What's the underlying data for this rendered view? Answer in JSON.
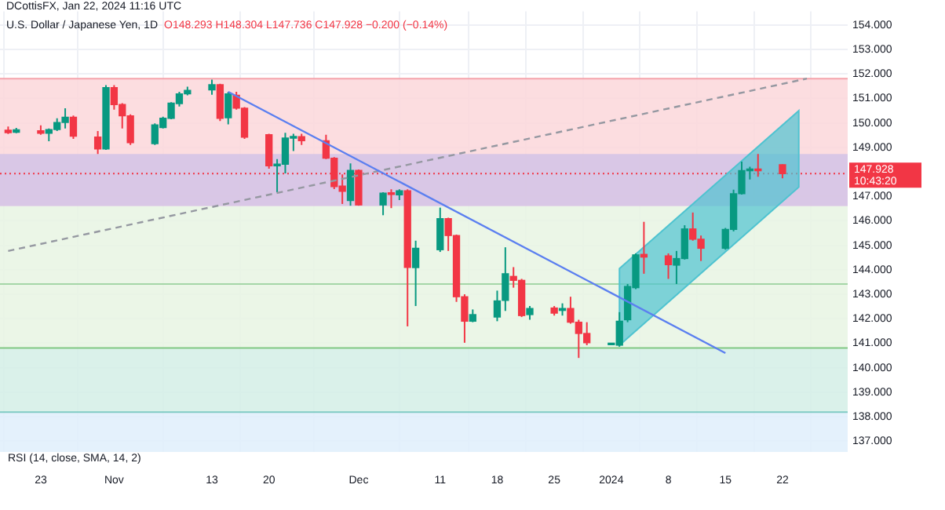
{
  "chart_data": {
    "type": "candlestick",
    "title": "U.S. Dollar / Japanese Yen, 1D",
    "subtitle": "DCottisFX, Jan 22, 2024 11:16 UTC",
    "annotations": [
      "O148.293 H148.304 L147.736 C147.928 −0.200 (−0.14%)",
      "10:43:20",
      "RSI (14, close, SMA, 14, 2)"
    ],
    "x": [
      "2023-10-19",
      "2023-10-20",
      "2023-10-23",
      "2023-10-24",
      "2023-10-25",
      "2023-10-26",
      "2023-10-27",
      "2023-10-30",
      "2023-10-31",
      "2023-11-01",
      "2023-11-02",
      "2023-11-03",
      "2023-11-06",
      "2023-11-07",
      "2023-11-08",
      "2023-11-09",
      "2023-11-10",
      "2023-11-13",
      "2023-11-14",
      "2023-11-15",
      "2023-11-16",
      "2023-11-17",
      "2023-11-20",
      "2023-11-21",
      "2023-11-22",
      "2023-11-23",
      "2023-11-24",
      "2023-11-27",
      "2023-11-28",
      "2023-11-29",
      "2023-11-30",
      "2023-12-01",
      "2023-12-04",
      "2023-12-05",
      "2023-12-06",
      "2023-12-07",
      "2023-12-08",
      "2023-12-11",
      "2023-12-12",
      "2023-12-13",
      "2023-12-14",
      "2023-12-15",
      "2023-12-18",
      "2023-12-19",
      "2023-12-20",
      "2023-12-21",
      "2023-12-22",
      "2023-12-25",
      "2023-12-26",
      "2023-12-27",
      "2023-12-28",
      "2023-12-29",
      "2024-01-01",
      "2024-01-02",
      "2024-01-03",
      "2024-01-04",
      "2024-01-05",
      "2024-01-08",
      "2024-01-09",
      "2024-01-10",
      "2024-01-11",
      "2024-01-12",
      "2024-01-15",
      "2024-01-16",
      "2024-01-17",
      "2024-01-18",
      "2024-01-19",
      "2024-01-22"
    ],
    "ohlc": [
      [
        149.7,
        149.85,
        149.55,
        149.6
      ],
      [
        149.62,
        149.8,
        149.58,
        149.72
      ],
      [
        149.68,
        149.9,
        149.52,
        149.58
      ],
      [
        149.58,
        149.77,
        149.25,
        149.73
      ],
      [
        149.73,
        150.19,
        149.67,
        150.02
      ],
      [
        150.02,
        150.6,
        149.77,
        150.23
      ],
      [
        150.23,
        150.3,
        149.35,
        149.46
      ],
      [
        149.42,
        149.67,
        148.73,
        148.94
      ],
      [
        148.94,
        151.54,
        148.9,
        151.44
      ],
      [
        151.44,
        151.54,
        150.54,
        150.75
      ],
      [
        150.75,
        150.81,
        149.77,
        150.29
      ],
      [
        150.29,
        150.35,
        149.1,
        149.19
      ],
      [
        149.15,
        149.98,
        149.1,
        149.92
      ],
      [
        149.81,
        150.25,
        149.77,
        150.19
      ],
      [
        150.19,
        150.85,
        150.15,
        150.81
      ],
      [
        150.79,
        151.27,
        150.67,
        151.19
      ],
      [
        151.19,
        151.48,
        151.13,
        151.33
      ],
      [
        151.35,
        151.77,
        151.15,
        151.56
      ],
      [
        151.56,
        151.6,
        150.08,
        150.19
      ],
      [
        150.21,
        151.27,
        149.94,
        151.19
      ],
      [
        151.13,
        151.27,
        150.54,
        150.6
      ],
      [
        150.6,
        150.65,
        149.35,
        149.42
      ],
      [
        149.52,
        149.56,
        148.13,
        148.25
      ],
      [
        148.25,
        148.52,
        147.17,
        148.31
      ],
      [
        148.31,
        149.6,
        147.94,
        149.38
      ],
      [
        149.38,
        149.56,
        148.85,
        149.44
      ],
      [
        149.44,
        149.56,
        149.1,
        149.27
      ],
      [
        149.27,
        149.52,
        148.52,
        148.56
      ],
      [
        148.56,
        148.6,
        147.3,
        147.4
      ],
      [
        147.42,
        147.9,
        146.69,
        147.21
      ],
      [
        146.83,
        148.35,
        146.62,
        148.06
      ],
      [
        148.06,
        148.1,
        146.62,
        146.65
      ],
      [
        146.65,
        147.17,
        146.23,
        147.13
      ],
      [
        147.15,
        147.29,
        146.52,
        147.08
      ],
      [
        147.06,
        147.29,
        146.85,
        147.23
      ],
      [
        147.23,
        147.29,
        141.69,
        144.1
      ],
      [
        144.09,
        145.19,
        142.52,
        144.88
      ],
      [
        144.82,
        146.54,
        144.73,
        146.09
      ],
      [
        146.09,
        146.13,
        144.77,
        145.4
      ],
      [
        145.4,
        145.44,
        142.69,
        142.9
      ],
      [
        142.9,
        143.0,
        141.02,
        141.9
      ],
      [
        141.9,
        142.38,
        141.86,
        142.17
      ],
      [
        142.07,
        143.15,
        141.9,
        142.73
      ],
      [
        142.75,
        144.92,
        142.32,
        143.84
      ],
      [
        143.73,
        144.11,
        143.27,
        143.57
      ],
      [
        143.57,
        143.63,
        142.07,
        142.13
      ],
      [
        142.17,
        142.52,
        141.96,
        142.42
      ],
      [
        142.44,
        142.52,
        142.13,
        142.23
      ],
      [
        142.34,
        142.63,
        142.13,
        142.42
      ],
      [
        142.42,
        142.9,
        141.8,
        141.86
      ],
      [
        141.86,
        141.96,
        140.4,
        141.4
      ],
      [
        141.4,
        141.86,
        140.92,
        141.02
      ],
      [
        140.94,
        141.0,
        140.92,
        140.96
      ],
      [
        140.92,
        142.27,
        140.86,
        141.9
      ],
      [
        141.96,
        143.42,
        141.86,
        143.32
      ],
      [
        143.27,
        144.67,
        143.21,
        144.61
      ],
      [
        144.63,
        145.96,
        143.84,
        144.52
      ],
      [
        144.57,
        144.67,
        143.63,
        144.21
      ],
      [
        144.19,
        144.77,
        143.42,
        144.46
      ],
      [
        144.46,
        145.82,
        144.42,
        145.67
      ],
      [
        145.67,
        146.34,
        145.19,
        145.25
      ],
      [
        145.25,
        145.4,
        144.36,
        144.88
      ],
      [
        144.88,
        145.71,
        144.82,
        145.65
      ],
      [
        145.65,
        147.27,
        145.57,
        147.11
      ],
      [
        147.11,
        148.42,
        147.07,
        148.05
      ],
      [
        148.05,
        148.21,
        147.69,
        148.11
      ],
      [
        148.11,
        148.73,
        147.8,
        148.05
      ],
      [
        148.293,
        148.304,
        147.736,
        147.928
      ]
    ],
    "colors": [
      "#f23645",
      "#089981",
      "#f23645",
      "#089981",
      "#089981",
      "#089981",
      "#f23645",
      "#f23645",
      "#089981",
      "#f23645",
      "#f23645",
      "#f23645",
      "#089981",
      "#089981",
      "#089981",
      "#089981",
      "#089981",
      "#089981",
      "#f23645",
      "#089981",
      "#f23645",
      "#f23645",
      "#f23645",
      "#089981",
      "#089981",
      "#089981",
      "#f23645",
      "#f23645",
      "#f23645",
      "#f23645",
      "#089981",
      "#f23645",
      "#089981",
      "#f23645",
      "#089981",
      "#f23645",
      "#089981",
      "#089981",
      "#f23645",
      "#f23645",
      "#f23645",
      "#089981",
      "#089981",
      "#089981",
      "#f23645",
      "#f23645",
      "#089981",
      "#f23645",
      "#089981",
      "#f23645",
      "#f23645",
      "#f23645",
      "#089981",
      "#089981",
      "#089981",
      "#089981",
      "#f23645",
      "#f23645",
      "#089981",
      "#089981",
      "#f23645",
      "#f23645",
      "#089981",
      "#089981",
      "#089981",
      "#089981",
      "#f23645",
      "#f23645"
    ],
    "series": [
      {
        "type": "line",
        "x": [
          "2023-11-15",
          "2024-01-15"
        ],
        "values": [
          151.27,
          140.6
        ],
        "color": "#5b7ff0"
      },
      {
        "type": "line",
        "x": [
          "2023-10-19",
          "2024-01-25"
        ],
        "values": [
          144.77,
          151.81
        ],
        "color": "#9598a1",
        "line_style": "dashed"
      },
      {
        "type": "line",
        "x": [
          "2024-01-02",
          "2024-01-24"
        ],
        "values": [
          null,
          null
        ],
        "lower": [
          140.92,
          147.38
        ],
        "upper": [
          144.05,
          150.5
        ],
        "color": "#4fc3d0"
      }
    ],
    "bands": [
      {
        "axis": "y",
        "from": 146.6,
        "to": 151.81,
        "color": "#fcd7da"
      },
      {
        "axis": "y",
        "from": 146.6,
        "to": 148.73,
        "color": "#d2c3e6"
      },
      {
        "axis": "y",
        "from": 140.81,
        "to": 146.6,
        "color": "#e7f4e3"
      },
      {
        "axis": "y",
        "from": 138.19,
        "to": 140.81,
        "color": "#d3eee6"
      },
      {
        "axis": "y",
        "from": 136.56,
        "to": 138.19,
        "color": "#dfeefb"
      }
    ],
    "ref_lines": [
      {
        "axis": "y",
        "value": 151.81,
        "color": "#f5a3ab",
        "line_style": "solid"
      },
      {
        "axis": "y",
        "value": 143.42,
        "color": "#a5d6a7",
        "line_style": "solid"
      },
      {
        "axis": "y",
        "value": 140.81,
        "color": "#81c784",
        "line_style": "solid"
      },
      {
        "axis": "y",
        "value": 138.19,
        "color": "#80cbc4",
        "line_style": "solid"
      },
      {
        "axis": "y",
        "value": 147.928,
        "label": "147.928",
        "color": "#f23645",
        "line_style": "dotted"
      }
    ],
    "xlim": [
      "2023-10-18",
      "2024-01-30"
    ],
    "xticks": [
      {
        "value": "2023-10-23",
        "label": "23"
      },
      {
        "value": "2023-11-01",
        "label": "Nov"
      },
      {
        "value": "2023-11-13",
        "label": "13"
      },
      {
        "value": "2023-11-20",
        "label": "20"
      },
      {
        "value": "2023-12-01",
        "label": "Dec"
      },
      {
        "value": "2023-12-11",
        "label": "11"
      },
      {
        "value": "2023-12-18",
        "label": "18"
      },
      {
        "value": "2023-12-25",
        "label": "25"
      },
      {
        "value": "2024-01-01",
        "label": "2024"
      },
      {
        "value": "2024-01-08",
        "label": "8"
      },
      {
        "value": "2024-01-15",
        "label": "15"
      },
      {
        "value": "2024-01-22",
        "label": "22"
      }
    ],
    "ylim": [
      136.56,
      154.56
    ],
    "yticks": [
      {
        "value": 137,
        "label": "137.000"
      },
      {
        "value": 138,
        "label": "138.000"
      },
      {
        "value": 139,
        "label": "139.000"
      },
      {
        "value": 140,
        "label": "140.000"
      },
      {
        "value": 141,
        "label": "141.000"
      },
      {
        "value": 142,
        "label": "142.000"
      },
      {
        "value": 143,
        "label": "143.000"
      },
      {
        "value": 144,
        "label": "144.000"
      },
      {
        "value": 145,
        "label": "145.000"
      },
      {
        "value": 146,
        "label": "146.000"
      },
      {
        "value": 147,
        "label": "147.000"
      },
      {
        "value": 148,
        "label": null
      },
      {
        "value": 149,
        "label": "149.000"
      },
      {
        "value": 150,
        "label": "150.000"
      },
      {
        "value": 151,
        "label": "151.000"
      },
      {
        "value": 152,
        "label": "152.000"
      },
      {
        "value": 153,
        "label": "153.000"
      },
      {
        "value": 154,
        "label": "154.000"
      }
    ],
    "grid": true
  }
}
